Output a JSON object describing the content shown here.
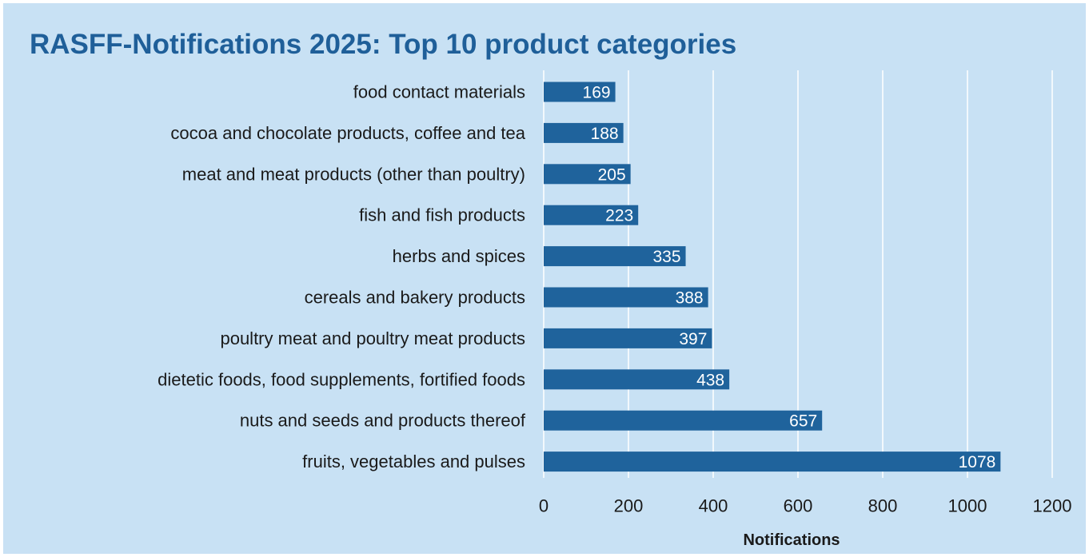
{
  "colors": {
    "background": "#c8e1f4",
    "bar": "#1f639c",
    "title": "#1f5f99",
    "gridline": "#ffffff"
  },
  "chart_data": {
    "type": "bar",
    "orientation": "horizontal",
    "title": "RASFF-Notifications 2025: Top 10 product categories",
    "xlabel": "Notifications",
    "ylabel": "",
    "categories": [
      "food contact materials",
      "cocoa and chocolate products, coffee and tea",
      "meat and meat products (other than poultry)",
      "fish and fish products",
      "herbs and spices",
      "cereals and bakery products",
      "poultry meat and poultry meat products",
      "dietetic foods, food supplements, fortified foods",
      "nuts and seeds and products thereof",
      "fruits, vegetables and pulses"
    ],
    "values": [
      169,
      188,
      205,
      223,
      335,
      388,
      397,
      438,
      657,
      1078
    ],
    "xlim": [
      0,
      1200
    ],
    "xticks": [
      0,
      200,
      400,
      600,
      800,
      1000,
      1200
    ],
    "grid": true,
    "legend": "none",
    "data_labels": true
  }
}
